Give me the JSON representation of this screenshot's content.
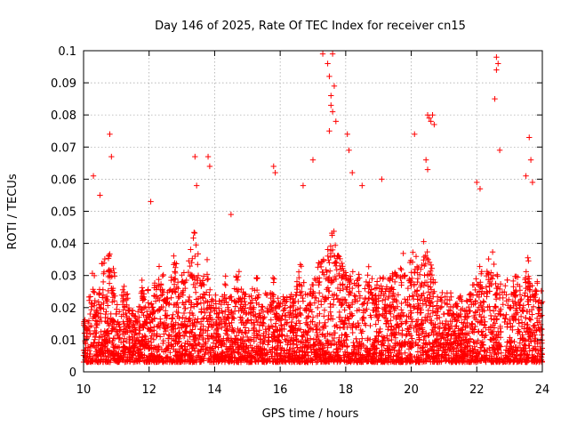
{
  "chart_data": {
    "type": "scatter",
    "title": "Day 146 of 2025, Rate Of TEC Index for receiver cn15",
    "xlabel": "GPS time / hours",
    "ylabel": "ROTI / TECUs",
    "xlim": [
      10,
      24
    ],
    "ylim": [
      0,
      0.1
    ],
    "grid": true,
    "marker": "+",
    "color": "#ff0000",
    "x_ticks": [
      10,
      12,
      14,
      16,
      18,
      20,
      22,
      24
    ],
    "x_tick_labels": [
      "10",
      "12",
      "14",
      "16",
      "18",
      "20",
      "22",
      "24"
    ],
    "y_ticks": [
      0,
      0.01,
      0.02,
      0.03,
      0.04,
      0.05,
      0.06,
      0.07,
      0.08,
      0.09,
      0.1
    ],
    "y_tick_labels": [
      "0",
      "0.01",
      "0.02",
      "0.03",
      "0.04",
      "0.05",
      "0.06",
      "0.07",
      "0.08",
      "0.09",
      "0.1"
    ],
    "series": [
      {
        "name": "ROTI",
        "x": [
          10.1,
          10.2,
          10.3,
          10.4,
          10.5,
          10.6,
          10.7,
          10.8,
          10.9,
          11.0,
          11.1,
          11.2,
          11.3,
          11.4,
          11.5,
          11.6,
          11.7,
          11.8,
          11.9,
          12.0,
          12.1,
          12.2,
          12.3,
          12.4,
          12.5,
          12.6,
          12.7,
          12.8,
          12.9,
          13.0,
          13.1,
          13.2,
          13.3,
          13.4,
          13.5,
          13.6,
          13.7,
          13.8,
          13.9,
          14.0,
          14.1,
          14.2,
          14.3,
          14.4,
          14.5,
          14.6,
          14.7,
          14.8,
          14.9,
          15.0,
          15.1,
          15.2,
          15.3,
          15.4,
          15.5,
          15.6,
          15.7,
          15.8,
          15.9,
          16.0,
          16.1,
          16.2,
          16.3,
          16.4,
          16.5,
          16.6,
          16.7,
          16.8,
          16.9,
          17.0,
          17.1,
          17.2,
          17.3,
          17.4,
          17.5,
          17.6,
          17.7,
          17.8,
          17.9,
          18.0,
          18.1,
          18.2,
          18.3,
          18.4,
          18.5,
          18.6,
          18.7,
          18.8,
          18.9,
          19.0,
          19.1,
          19.2,
          19.3,
          19.4,
          19.5,
          19.6,
          19.7,
          19.8,
          19.9,
          20.0,
          20.1,
          20.2,
          20.3,
          20.4,
          20.5,
          20.6,
          20.7,
          20.8,
          20.9,
          21.0,
          21.1,
          21.2,
          21.3,
          21.4,
          21.5,
          21.6,
          21.7,
          21.8,
          21.9,
          22.0,
          22.1,
          22.2,
          22.3,
          22.4,
          22.5,
          22.6,
          22.7,
          22.8,
          22.9,
          23.0,
          23.1,
          23.2,
          23.3,
          23.4,
          23.5,
          23.6,
          23.7,
          23.8,
          23.9,
          10.3,
          10.5,
          10.8,
          10.85,
          12.05,
          13.4,
          13.45,
          13.8,
          13.85,
          14.5,
          15.8,
          15.85,
          16.7,
          17.0,
          17.3,
          17.45,
          17.5,
          17.55,
          17.6,
          17.65,
          17.7,
          17.55,
          17.6,
          17.5,
          18.05,
          18.1,
          18.2,
          18.5,
          19.1,
          20.1,
          20.5,
          20.55,
          20.6,
          20.65,
          20.7,
          20.45,
          20.5,
          22.0,
          22.1,
          22.55,
          22.6,
          22.65,
          22.6,
          22.7,
          23.5,
          23.6,
          23.65,
          23.7
        ],
        "y": [
          0.012,
          0.018,
          0.025,
          0.015,
          0.02,
          0.028,
          0.022,
          0.03,
          0.026,
          0.018,
          0.014,
          0.021,
          0.024,
          0.016,
          0.019,
          0.013,
          0.017,
          0.023,
          0.015,
          0.02,
          0.018,
          0.022,
          0.027,
          0.024,
          0.019,
          0.021,
          0.025,
          0.029,
          0.023,
          0.028,
          0.026,
          0.031,
          0.034,
          0.036,
          0.03,
          0.027,
          0.024,
          0.029,
          0.022,
          0.019,
          0.017,
          0.021,
          0.024,
          0.02,
          0.018,
          0.022,
          0.025,
          0.021,
          0.019,
          0.016,
          0.018,
          0.02,
          0.023,
          0.017,
          0.015,
          0.019,
          0.021,
          0.024,
          0.018,
          0.016,
          0.019,
          0.022,
          0.02,
          0.018,
          0.024,
          0.027,
          0.022,
          0.019,
          0.021,
          0.025,
          0.023,
          0.028,
          0.031,
          0.029,
          0.034,
          0.038,
          0.033,
          0.03,
          0.027,
          0.029,
          0.024,
          0.026,
          0.022,
          0.025,
          0.021,
          0.023,
          0.027,
          0.024,
          0.02,
          0.022,
          0.025,
          0.021,
          0.023,
          0.026,
          0.028,
          0.024,
          0.027,
          0.03,
          0.026,
          0.028,
          0.031,
          0.029,
          0.027,
          0.033,
          0.03,
          0.028,
          0.025,
          0.022,
          0.02,
          0.018,
          0.021,
          0.019,
          0.017,
          0.016,
          0.018,
          0.015,
          0.017,
          0.019,
          0.021,
          0.024,
          0.027,
          0.022,
          0.025,
          0.028,
          0.03,
          0.026,
          0.023,
          0.021,
          0.024,
          0.02,
          0.022,
          0.025,
          0.021,
          0.019,
          0.026,
          0.029,
          0.024,
          0.022,
          0.02,
          0.061,
          0.055,
          0.074,
          0.067,
          0.053,
          0.067,
          0.058,
          0.067,
          0.064,
          0.049,
          0.064,
          0.062,
          0.058,
          0.066,
          0.099,
          0.096,
          0.092,
          0.086,
          0.099,
          0.089,
          0.078,
          0.083,
          0.081,
          0.075,
          0.074,
          0.069,
          0.062,
          0.058,
          0.06,
          0.074,
          0.08,
          0.079,
          0.078,
          0.08,
          0.077,
          0.066,
          0.063,
          0.059,
          0.057,
          0.085,
          0.098,
          0.096,
          0.094,
          0.069,
          0.061,
          0.073,
          0.066,
          0.059
        ]
      }
    ]
  }
}
